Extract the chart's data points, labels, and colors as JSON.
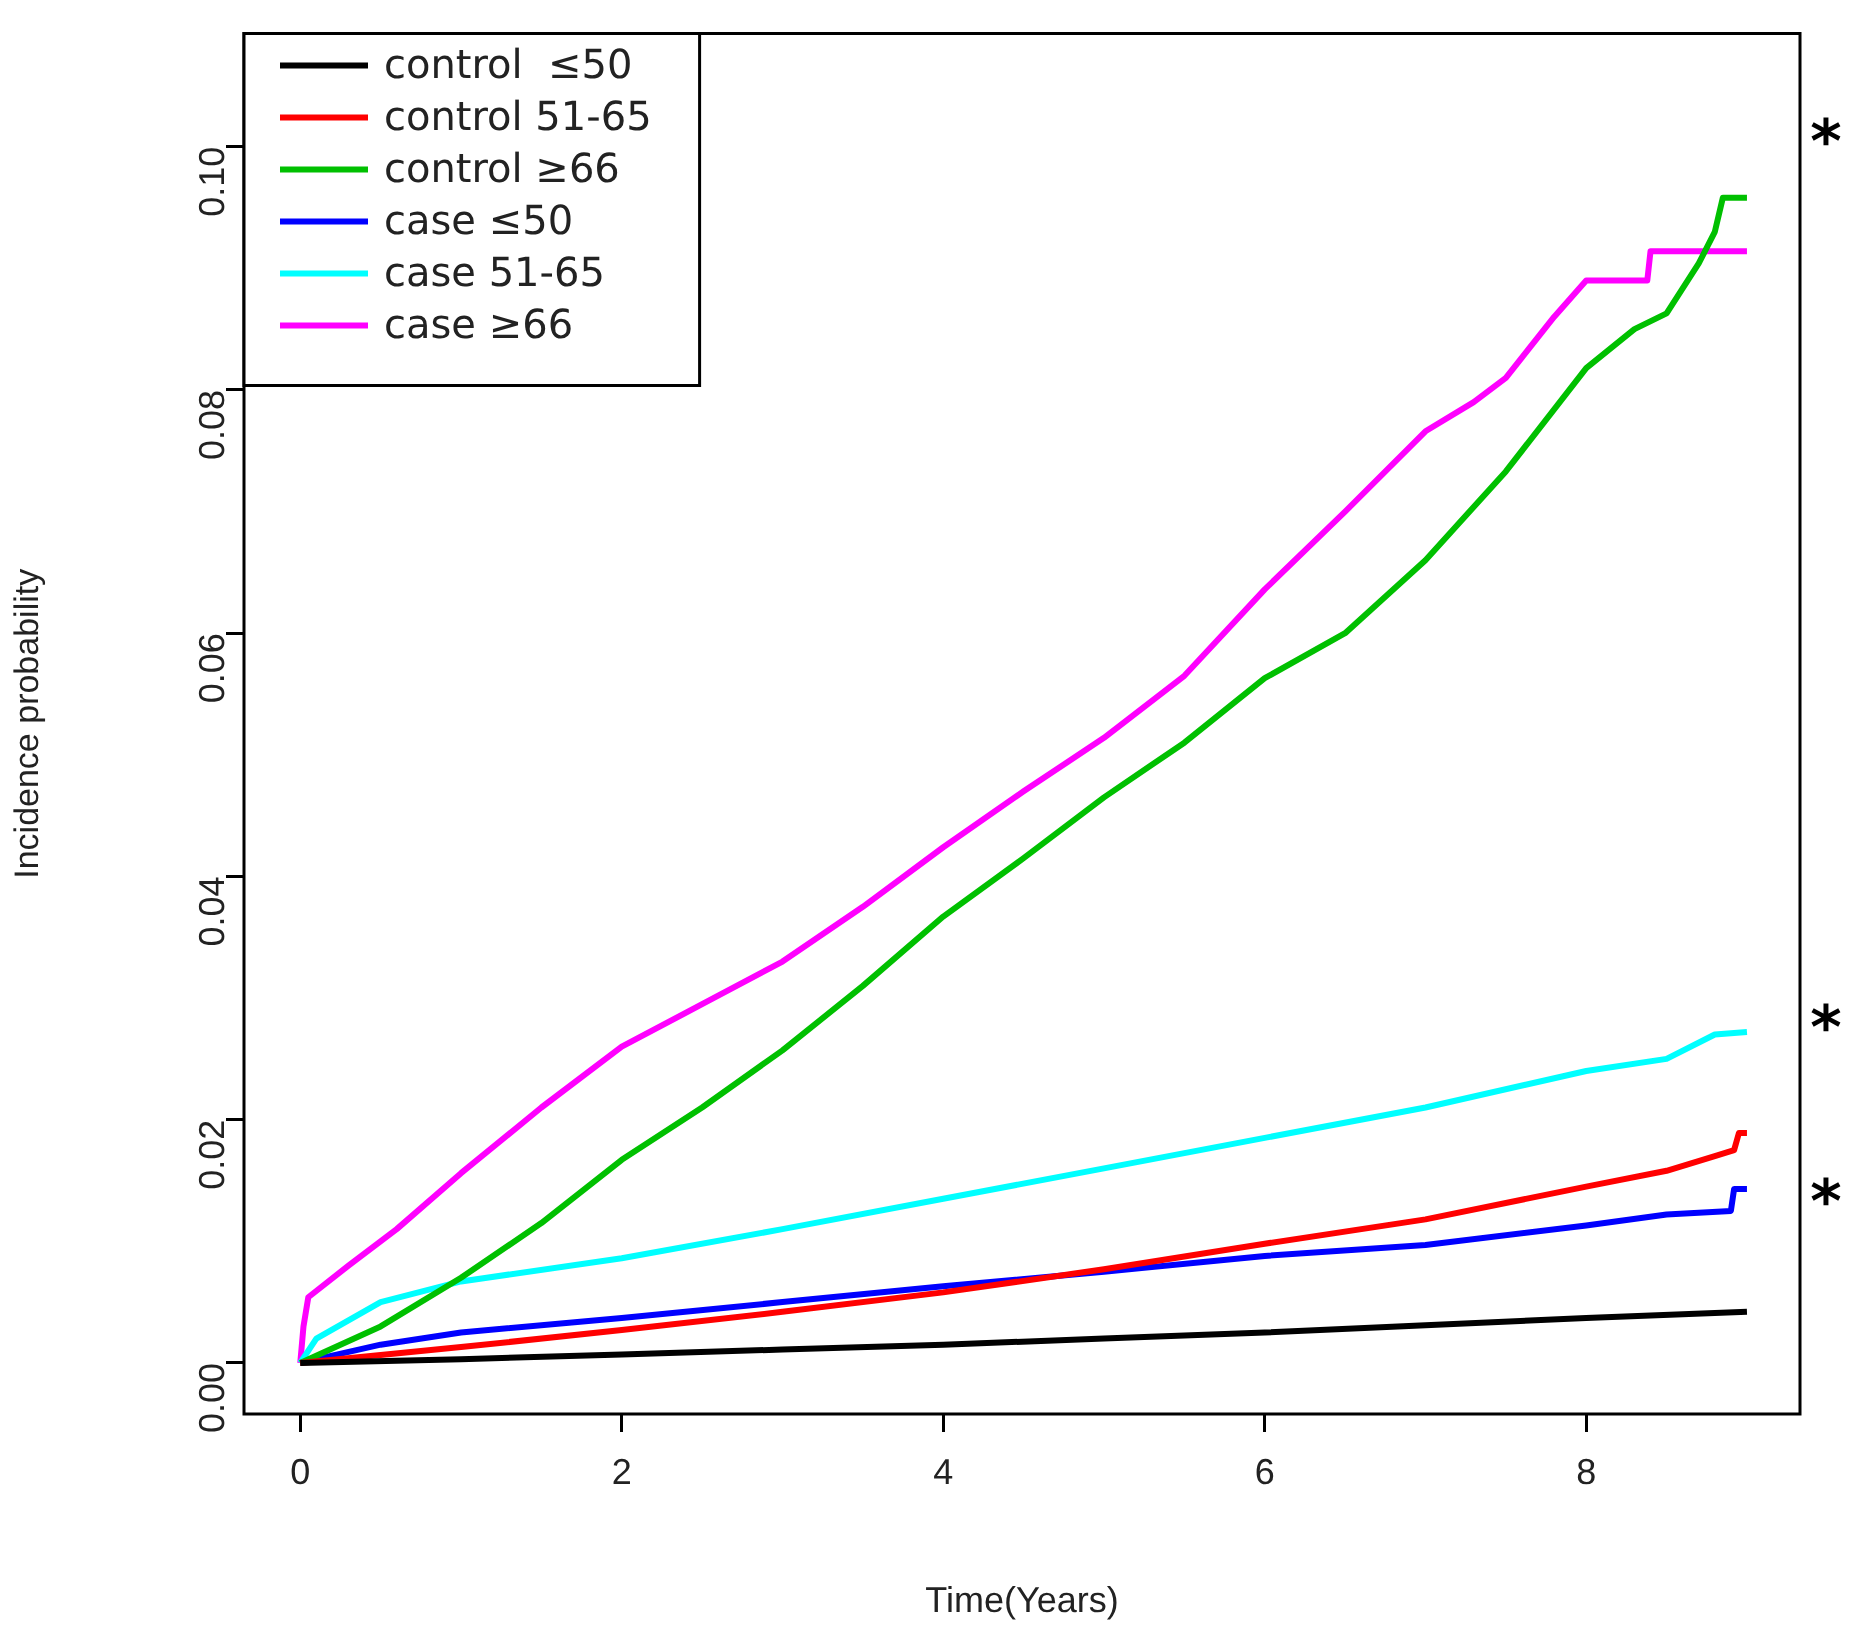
{
  "chart_data": {
    "type": "line",
    "xlabel": "Time(Years)",
    "ylabel": "Incidence probability",
    "xlim": [
      -0.35,
      9.33
    ],
    "ylim": [
      -0.0042,
      0.1093
    ],
    "xticks": [
      0,
      2,
      4,
      6,
      8
    ],
    "yticks": [
      {
        "value": 0,
        "label": "0.00"
      },
      {
        "value": 0.02,
        "label": "0.02"
      },
      {
        "value": 0.04,
        "label": "0.04"
      },
      {
        "value": 0.06,
        "label": "0.06"
      },
      {
        "value": 0.08,
        "label": "0.08"
      },
      {
        "value": 0.1,
        "label": "0.10"
      }
    ],
    "legend": "top left",
    "series": [
      {
        "name": "control  ≤50",
        "color": "#000000",
        "x": [
          0,
          1,
          2,
          3,
          4,
          5,
          6,
          7,
          8,
          9
        ],
        "values": [
          0,
          0.0003,
          0.0007,
          0.0011,
          0.0015,
          0.002,
          0.0025,
          0.0031,
          0.0037,
          0.0042
        ]
      },
      {
        "name": "control 51-65",
        "color": "#ff0000",
        "x": [
          0,
          1,
          2,
          3,
          4,
          5,
          6,
          7,
          8,
          8.5,
          8.8,
          8.92,
          8.95,
          9
        ],
        "values": [
          0,
          0.0013,
          0.0027,
          0.0042,
          0.0058,
          0.0077,
          0.0098,
          0.0118,
          0.0145,
          0.0158,
          0.017,
          0.0175,
          0.0189,
          0.0189
        ]
      },
      {
        "name": "control ≥66",
        "color": "#00c000",
        "x": [
          0,
          0.5,
          1,
          1.5,
          2,
          2.5,
          3,
          3.5,
          4,
          4.5,
          5,
          5.5,
          6,
          6.5,
          7,
          7.5,
          8,
          8.3,
          8.5,
          8.7,
          8.8,
          8.85,
          9
        ],
        "values": [
          0,
          0.003,
          0.007,
          0.0115,
          0.0167,
          0.021,
          0.0257,
          0.031,
          0.0367,
          0.0415,
          0.0465,
          0.051,
          0.0563,
          0.06,
          0.066,
          0.0733,
          0.0818,
          0.085,
          0.0863,
          0.0904,
          0.093,
          0.0958,
          0.0958
        ]
      },
      {
        "name": "case ≤50",
        "color": "#0000ff",
        "x": [
          0,
          0.5,
          1,
          2,
          3,
          4,
          5,
          6,
          7,
          8,
          8.5,
          8.9,
          8.92,
          9
        ],
        "values": [
          0,
          0.0015,
          0.0025,
          0.0037,
          0.005,
          0.0063,
          0.0075,
          0.0088,
          0.0097,
          0.0113,
          0.0122,
          0.0125,
          0.0143,
          0.0143
        ]
      },
      {
        "name": "case 51-65",
        "color": "#00ffff",
        "x": [
          0,
          0.1,
          0.5,
          1,
          2,
          3,
          4,
          5,
          6,
          7,
          8,
          8.5,
          8.8,
          9
        ],
        "values": [
          0,
          0.002,
          0.005,
          0.0067,
          0.0086,
          0.011,
          0.0135,
          0.016,
          0.0185,
          0.021,
          0.024,
          0.025,
          0.027,
          0.0272
        ]
      },
      {
        "name": "case ≥66",
        "color": "#ff00ff",
        "x": [
          0,
          0.02,
          0.05,
          0.3,
          0.6,
          1,
          1.5,
          2,
          2.5,
          3,
          3.5,
          4,
          4.5,
          5,
          5.5,
          6,
          6.5,
          7,
          7.3,
          7.5,
          7.8,
          8,
          8.38,
          8.4,
          9
        ],
        "values": [
          0,
          0.003,
          0.0054,
          0.008,
          0.011,
          0.0156,
          0.021,
          0.026,
          0.0295,
          0.033,
          0.0375,
          0.0424,
          0.047,
          0.0514,
          0.0565,
          0.0636,
          0.07,
          0.0766,
          0.079,
          0.081,
          0.086,
          0.089,
          0.089,
          0.0914,
          0.0914
        ]
      }
    ],
    "annotations": [
      "*",
      "*",
      "*"
    ]
  }
}
